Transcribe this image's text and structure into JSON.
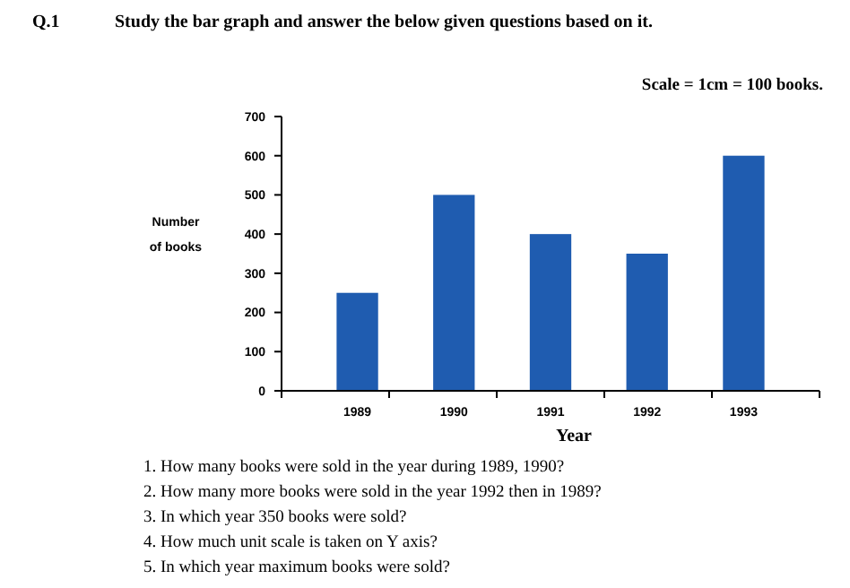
{
  "chart_data": {
    "type": "bar",
    "title": "Study the bar graph and answer the below given questions based on it.",
    "xlabel": "Year",
    "ylabel": "Number of books",
    "categories": [
      "1989",
      "1990",
      "1991",
      "1992",
      "1993"
    ],
    "values": [
      250,
      500,
      400,
      350,
      600
    ],
    "color": "#1f5cb0",
    "ylim": [
      0,
      700
    ],
    "yticks": [
      0,
      100,
      200,
      300,
      400,
      500,
      600,
      700
    ],
    "grid": false,
    "annotations": [
      "Q.1",
      "Scale = 1cm = 100 books.",
      "1. How many books were sold in the year during 1989, 1990?",
      "2. How many more books were sold in the year 1992 then in 1989?",
      "3. In which year 350 books were sold?",
      "4. How much unit scale is taken on Y axis?",
      "5. In which year maximum books were sold?"
    ]
  }
}
